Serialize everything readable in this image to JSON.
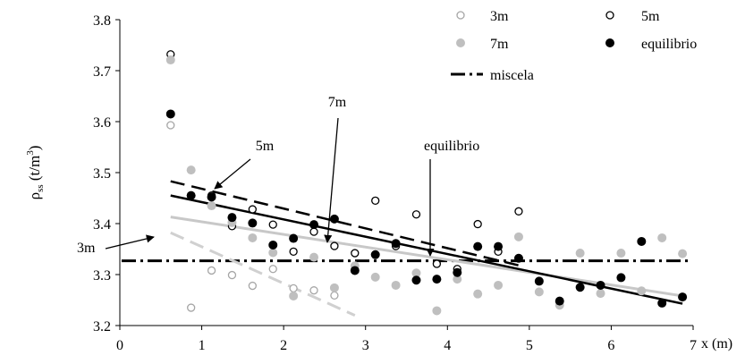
{
  "chart_data": {
    "type": "scatter",
    "xlabel": "x (m)",
    "ylabel_base": "ρ",
    "ylabel_sub": "ss",
    "ylabel_unit": " (t/m",
    "ylabel_sup": "3",
    "ylabel_close": ")",
    "xlim": [
      0,
      7
    ],
    "ylim": [
      3.2,
      3.8
    ],
    "xticks": [
      "0",
      "1",
      "2",
      "3",
      "4",
      "5",
      "6",
      "7"
    ],
    "yticks": [
      "3.2",
      "3.3",
      "3.4",
      "3.5",
      "3.6",
      "3.7",
      "3.8"
    ],
    "grid": false,
    "legend_position": "top-right",
    "series": [
      {
        "name": "3m",
        "marker": "open-circle",
        "color": "#a6a6a6",
        "points": [
          [
            0.62,
            3.593
          ],
          [
            0.87,
            3.235
          ],
          [
            1.12,
            3.308
          ],
          [
            1.37,
            3.299
          ],
          [
            1.62,
            3.278
          ],
          [
            1.87,
            3.311
          ],
          [
            2.12,
            3.273
          ],
          [
            2.37,
            3.269
          ],
          [
            2.62,
            3.259
          ]
        ]
      },
      {
        "name": "5m",
        "marker": "open-circle",
        "color": "#000000",
        "points": [
          [
            0.62,
            3.732
          ],
          [
            1.12,
            3.455
          ],
          [
            1.37,
            3.395
          ],
          [
            1.62,
            3.428
          ],
          [
            1.87,
            3.398
          ],
          [
            2.12,
            3.345
          ],
          [
            2.37,
            3.384
          ],
          [
            2.62,
            3.356
          ],
          [
            2.87,
            3.342
          ],
          [
            3.12,
            3.445
          ],
          [
            3.37,
            3.356
          ],
          [
            3.62,
            3.418
          ],
          [
            3.87,
            3.321
          ],
          [
            4.12,
            3.311
          ],
          [
            4.37,
            3.399
          ],
          [
            4.62,
            3.345
          ],
          [
            4.87,
            3.424
          ]
        ]
      },
      {
        "name": "7m",
        "marker": "filled-circle",
        "color": "#bfbfbf",
        "points": [
          [
            0.62,
            3.721
          ],
          [
            0.87,
            3.505
          ],
          [
            1.12,
            3.435
          ],
          [
            1.37,
            3.402
          ],
          [
            1.62,
            3.372
          ],
          [
            1.87,
            3.343
          ],
          [
            2.12,
            3.258
          ],
          [
            2.37,
            3.334
          ],
          [
            2.62,
            3.274
          ],
          [
            2.87,
            3.317
          ],
          [
            3.12,
            3.295
          ],
          [
            3.37,
            3.279
          ],
          [
            3.62,
            3.303
          ],
          [
            3.87,
            3.229
          ],
          [
            4.12,
            3.291
          ],
          [
            4.37,
            3.262
          ],
          [
            4.62,
            3.279
          ],
          [
            4.87,
            3.374
          ],
          [
            5.12,
            3.266
          ],
          [
            5.37,
            3.24
          ],
          [
            5.62,
            3.342
          ],
          [
            5.87,
            3.263
          ],
          [
            6.12,
            3.342
          ],
          [
            6.37,
            3.268
          ],
          [
            6.62,
            3.372
          ],
          [
            6.87,
            3.341
          ]
        ]
      },
      {
        "name": "equilibrio",
        "marker": "filled-circle",
        "color": "#000000",
        "points": [
          [
            0.62,
            3.615
          ],
          [
            0.87,
            3.455
          ],
          [
            1.12,
            3.452
          ],
          [
            1.37,
            3.412
          ],
          [
            1.62,
            3.401
          ],
          [
            1.87,
            3.358
          ],
          [
            2.12,
            3.371
          ],
          [
            2.37,
            3.398
          ],
          [
            2.62,
            3.409
          ],
          [
            2.87,
            3.308
          ],
          [
            3.12,
            3.339
          ],
          [
            3.37,
            3.361
          ],
          [
            3.62,
            3.289
          ],
          [
            3.87,
            3.291
          ],
          [
            4.12,
            3.304
          ],
          [
            4.37,
            3.355
          ],
          [
            4.62,
            3.355
          ],
          [
            4.87,
            3.332
          ],
          [
            5.12,
            3.287
          ],
          [
            5.37,
            3.248
          ],
          [
            5.62,
            3.275
          ],
          [
            5.87,
            3.279
          ],
          [
            6.12,
            3.294
          ],
          [
            6.37,
            3.365
          ],
          [
            6.62,
            3.244
          ],
          [
            6.87,
            3.256
          ]
        ]
      }
    ],
    "trendlines": [
      {
        "series": "3m",
        "style": "dashed",
        "color": "#d0d0d0",
        "width": 3,
        "x": [
          0.62,
          2.87
        ],
        "y": [
          3.382,
          3.22
        ]
      },
      {
        "series": "5m",
        "style": "dashed",
        "color": "#000000",
        "width": 2.5,
        "x": [
          0.62,
          4.87
        ],
        "y": [
          3.483,
          3.318
        ]
      },
      {
        "series": "7m",
        "style": "solid",
        "color": "#c8c8c8",
        "width": 3,
        "x": [
          0.62,
          6.87
        ],
        "y": [
          3.413,
          3.258
        ]
      },
      {
        "series": "equilibrio",
        "style": "solid",
        "color": "#000000",
        "width": 2.5,
        "x": [
          0.62,
          6.87
        ],
        "y": [
          3.455,
          3.243
        ]
      }
    ],
    "reference_line": {
      "name": "miscela",
      "y": 3.327,
      "style": "dash-dot",
      "color": "#000000"
    },
    "legend": {
      "entries": [
        {
          "label": "3m",
          "marker": "open-circle",
          "color": "#a6a6a6"
        },
        {
          "label": "5m",
          "marker": "open-circle",
          "color": "#000000"
        },
        {
          "label": "7m",
          "marker": "filled-circle",
          "color": "#bfbfbf"
        },
        {
          "label": "equilibrio",
          "marker": "filled-circle",
          "color": "#000000"
        },
        {
          "label": "miscela",
          "marker": "dash-dot-line",
          "color": "#000000"
        }
      ]
    },
    "annotations": [
      {
        "text": "3m",
        "x_data": 0.3,
        "y_data": 3.327,
        "target": [
          0.9,
          3.348
        ]
      },
      {
        "text": "5m",
        "x_data": 1.95,
        "y_data": 3.51,
        "target": [
          1.38,
          3.452
        ]
      },
      {
        "text": "7m",
        "x_data": 3.0,
        "y_data": 3.636,
        "target": [
          2.75,
          3.367
        ]
      },
      {
        "text": "equilibrio",
        "x_data": 3.92,
        "y_data": 3.475,
        "target": [
          3.92,
          3.347
        ]
      }
    ]
  }
}
